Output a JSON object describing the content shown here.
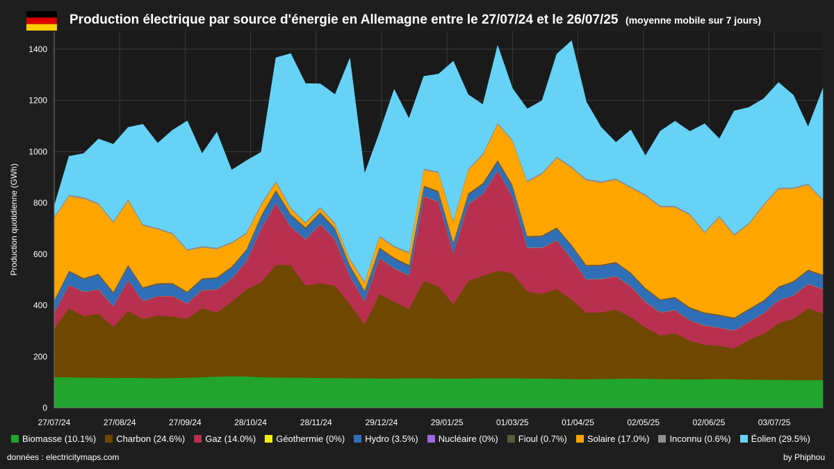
{
  "header": {
    "title": "Production électrique par source d'énergie en Allemagne entre le 27/07/24 et le 26/07/25",
    "subtitle": "(moyenne mobile sur 7 jours)",
    "flag_colors": [
      "#000000",
      "#dd0000",
      "#ffce00"
    ]
  },
  "footer": {
    "source": "données : electricitymaps.com",
    "credit": "by Phiphou"
  },
  "chart_data": {
    "type": "area",
    "stacked": true,
    "title": "Production électrique par source d'énergie en Allemagne entre le 27/07/24 et le 26/07/25",
    "subtitle": "(moyenne mobile sur 7 jours)",
    "ylabel": "Production quotidienne (GWh)",
    "xlabel": "",
    "ylim": [
      0,
      1470
    ],
    "yticks": [
      "0",
      "200",
      "400",
      "600",
      "800",
      "1000",
      "1200",
      "1400"
    ],
    "xticks": [
      "27/07/24",
      "27/08/24",
      "27/09/24",
      "28/10/24",
      "28/11/24",
      "29/12/24",
      "29/01/25",
      "01/03/25",
      "01/04/25",
      "02/05/25",
      "02/06/25",
      "03/07/25"
    ],
    "grid": true,
    "legend_position": "bottom",
    "x_step_days": 7,
    "x": [
      "27/07/24",
      "03/08/24",
      "10/08/24",
      "17/08/24",
      "24/08/24",
      "31/08/24",
      "07/09/24",
      "14/09/24",
      "21/09/24",
      "28/09/24",
      "05/10/24",
      "12/10/24",
      "19/10/24",
      "26/10/24",
      "02/11/24",
      "09/11/24",
      "16/11/24",
      "23/11/24",
      "30/11/24",
      "07/12/24",
      "14/12/24",
      "21/12/24",
      "28/12/24",
      "04/01/25",
      "11/01/25",
      "18/01/25",
      "25/01/25",
      "01/02/25",
      "08/02/25",
      "15/02/25",
      "22/02/25",
      "01/03/25",
      "08/03/25",
      "15/03/25",
      "22/03/25",
      "29/03/25",
      "05/04/25",
      "12/04/25",
      "19/04/25",
      "26/04/25",
      "03/05/25",
      "10/05/25",
      "17/05/25",
      "24/05/25",
      "31/05/25",
      "07/06/25",
      "14/06/25",
      "21/06/25",
      "28/06/25",
      "05/07/25",
      "12/07/25",
      "19/07/25",
      "26/07/25"
    ],
    "series": [
      {
        "name": "Biomasse (10.1%)",
        "color": "#22a52e",
        "values": [
          120,
          120,
          118,
          118,
          117,
          118,
          117,
          116,
          117,
          118,
          120,
          122,
          124,
          123,
          120,
          119,
          118,
          118,
          117,
          117,
          116,
          116,
          115,
          115,
          116,
          116,
          115,
          115,
          115,
          116,
          116,
          116,
          115,
          115,
          114,
          113,
          112,
          113,
          114,
          115,
          114,
          113,
          112,
          112,
          112,
          113,
          112,
          111,
          110,
          110,
          109,
          109,
          109
        ]
      },
      {
        "name": "Charbon (24.6%)",
        "color": "#6e4800",
        "values": [
          190,
          270,
          240,
          250,
          200,
          260,
          230,
          245,
          240,
          230,
          270,
          250,
          290,
          340,
          370,
          440,
          440,
          360,
          370,
          360,
          290,
          210,
          330,
          300,
          270,
          380,
          360,
          290,
          380,
          400,
          420,
          410,
          340,
          330,
          350,
          310,
          260,
          260,
          270,
          240,
          200,
          170,
          180,
          150,
          135,
          130,
          120,
          155,
          180,
          220,
          240,
          280,
          260
        ]
      },
      {
        "name": "Gaz (14.0%)",
        "color": "#b8304f",
        "values": [
          60,
          90,
          95,
          95,
          80,
          120,
          70,
          75,
          80,
          60,
          70,
          90,
          90,
          110,
          210,
          240,
          150,
          180,
          230,
          180,
          110,
          90,
          140,
          130,
          130,
          330,
          330,
          200,
          300,
          320,
          390,
          300,
          170,
          180,
          190,
          160,
          130,
          130,
          130,
          120,
          100,
          90,
          90,
          80,
          75,
          70,
          70,
          70,
          80,
          90,
          90,
          95,
          95
        ]
      },
      {
        "name": "Géothermie (0%)",
        "color": "#f2f200",
        "values": [
          0.5,
          0.5,
          0.5,
          0.5,
          0.5,
          0.5,
          0.5,
          0.5,
          0.5,
          0.5,
          0.5,
          0.5,
          0.5,
          0.5,
          0.5,
          0.5,
          0.5,
          0.5,
          0.5,
          0.5,
          0.5,
          0.5,
          0.5,
          0.5,
          0.5,
          0.5,
          0.5,
          0.5,
          0.5,
          0.5,
          0.5,
          0.5,
          0.5,
          0.5,
          0.5,
          0.5,
          0.5,
          0.5,
          0.5,
          0.5,
          0.5,
          0.5,
          0.5,
          0.5,
          0.5,
          0.5,
          0.5,
          0.5,
          0.5,
          0.5,
          0.5,
          0.5,
          0.5
        ]
      },
      {
        "name": "Hydro (3.5%)",
        "color": "#2f6fb7",
        "values": [
          45,
          50,
          48,
          55,
          50,
          55,
          48,
          45,
          45,
          40,
          40,
          42,
          42,
          40,
          45,
          45,
          42,
          40,
          40,
          38,
          35,
          35,
          35,
          35,
          35,
          35,
          35,
          35,
          35,
          35,
          35,
          38,
          40,
          42,
          45,
          48,
          50,
          50,
          50,
          48,
          48,
          45,
          45,
          45,
          45,
          45,
          45,
          45,
          45,
          48,
          50,
          50,
          50
        ]
      },
      {
        "name": "Nucléaire (0%)",
        "color": "#a066e0",
        "values": [
          0.5,
          0.5,
          0.5,
          0.5,
          0.5,
          0.5,
          0.5,
          0.5,
          0.5,
          0.5,
          0.5,
          0.5,
          0.5,
          0.5,
          0.5,
          0.5,
          0.5,
          0.5,
          0.5,
          0.5,
          0.5,
          0.5,
          0.5,
          0.5,
          0.5,
          0.5,
          0.5,
          0.5,
          0.5,
          0.5,
          0.5,
          0.5,
          0.5,
          0.5,
          0.5,
          0.5,
          0.5,
          0.5,
          0.5,
          0.5,
          0.5,
          0.5,
          0.5,
          0.5,
          0.5,
          0.5,
          0.5,
          0.5,
          0.5,
          0.5,
          0.5,
          0.5,
          0.5
        ]
      },
      {
        "name": "Fioul (0.7%)",
        "color": "#5a5a3c",
        "values": [
          5,
          5,
          5,
          5,
          5,
          5,
          5,
          5,
          5,
          5,
          5,
          5,
          5,
          5,
          6,
          6,
          6,
          6,
          6,
          6,
          6,
          6,
          6,
          6,
          6,
          6,
          6,
          6,
          6,
          6,
          6,
          6,
          5,
          5,
          5,
          5,
          5,
          5,
          5,
          5,
          5,
          5,
          5,
          5,
          5,
          5,
          5,
          5,
          5,
          5,
          5,
          5,
          5
        ]
      },
      {
        "name": "Solaire (17.0%)",
        "color": "#ffa500",
        "values": [
          320,
          290,
          310,
          270,
          270,
          250,
          240,
          210,
          190,
          160,
          120,
          110,
          90,
          60,
          40,
          30,
          20,
          15,
          15,
          15,
          20,
          30,
          40,
          40,
          45,
          60,
          70,
          80,
          90,
          110,
          140,
          170,
          210,
          240,
          270,
          300,
          330,
          320,
          320,
          330,
          360,
          360,
          350,
          360,
          310,
          380,
          320,
          330,
          370,
          380,
          360,
          330,
          290
        ]
      },
      {
        "name": "Inconnu (0.6%)",
        "color": "#8f8f8f",
        "values": [
          6,
          6,
          6,
          6,
          6,
          6,
          6,
          6,
          6,
          6,
          6,
          6,
          6,
          6,
          6,
          6,
          6,
          6,
          6,
          6,
          6,
          6,
          6,
          6,
          6,
          6,
          6,
          6,
          6,
          6,
          6,
          6,
          6,
          6,
          6,
          6,
          6,
          6,
          6,
          6,
          6,
          6,
          6,
          6,
          6,
          6,
          6,
          6,
          6,
          6,
          6,
          6,
          6
        ]
      },
      {
        "name": "Éolien (29.5%)",
        "color": "#66d3f6",
        "values": [
          40,
          150,
          170,
          250,
          300,
          280,
          390,
          330,
          400,
          500,
          360,
          450,
          280,
          280,
          200,
          480,
          600,
          540,
          480,
          500,
          780,
          420,
          400,
          610,
          520,
          360,
          380,
          620,
          290,
          190,
          300,
          200,
          280,
          280,
          400,
          490,
          300,
          210,
          140,
          220,
          150,
          290,
          330,
          320,
          420,
          300,
          480,
          450,
          410,
          410,
          360,
          220,
          430
        ]
      }
    ]
  }
}
